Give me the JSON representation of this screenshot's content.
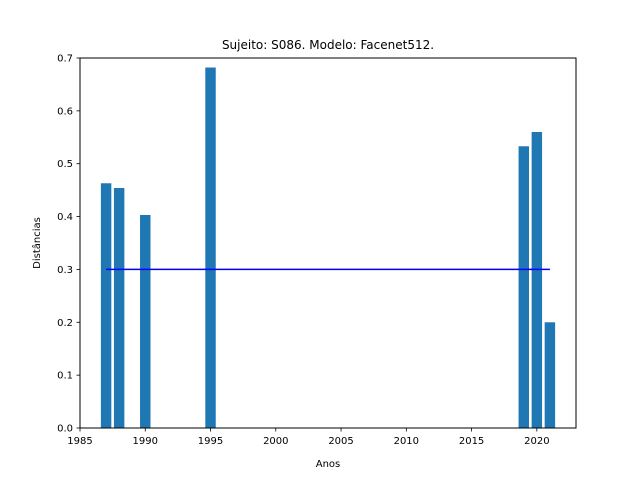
{
  "chart_data": {
    "type": "bar",
    "title": "Sujeito: S086. Modelo: Facenet512.",
    "xlabel": "Anos",
    "ylabel": "Distâncias",
    "x": [
      1987,
      1988,
      1990,
      1995,
      2019,
      2020,
      2021
    ],
    "values": [
      0.463,
      0.454,
      0.403,
      0.682,
      0.533,
      0.56,
      0.2
    ],
    "bar_color": "#1f77b4",
    "xlim": [
      1985,
      2023
    ],
    "ylim": [
      0,
      0.7
    ],
    "xticks": [
      1985,
      1990,
      1995,
      2000,
      2005,
      2010,
      2015,
      2020
    ],
    "yticks": [
      0.0,
      0.1,
      0.2,
      0.3,
      0.4,
      0.5,
      0.6,
      0.7
    ],
    "xtick_labels": [
      "1985",
      "1990",
      "1995",
      "2000",
      "2005",
      "2010",
      "2015",
      "2020"
    ],
    "ytick_labels": [
      "0.0",
      "0.1",
      "0.2",
      "0.3",
      "0.4",
      "0.5",
      "0.6",
      "0.7"
    ],
    "threshold": {
      "value": 0.3,
      "x_start": 1987,
      "x_end": 2021,
      "color": "#0000ff"
    },
    "grid": false,
    "legend": "none"
  }
}
